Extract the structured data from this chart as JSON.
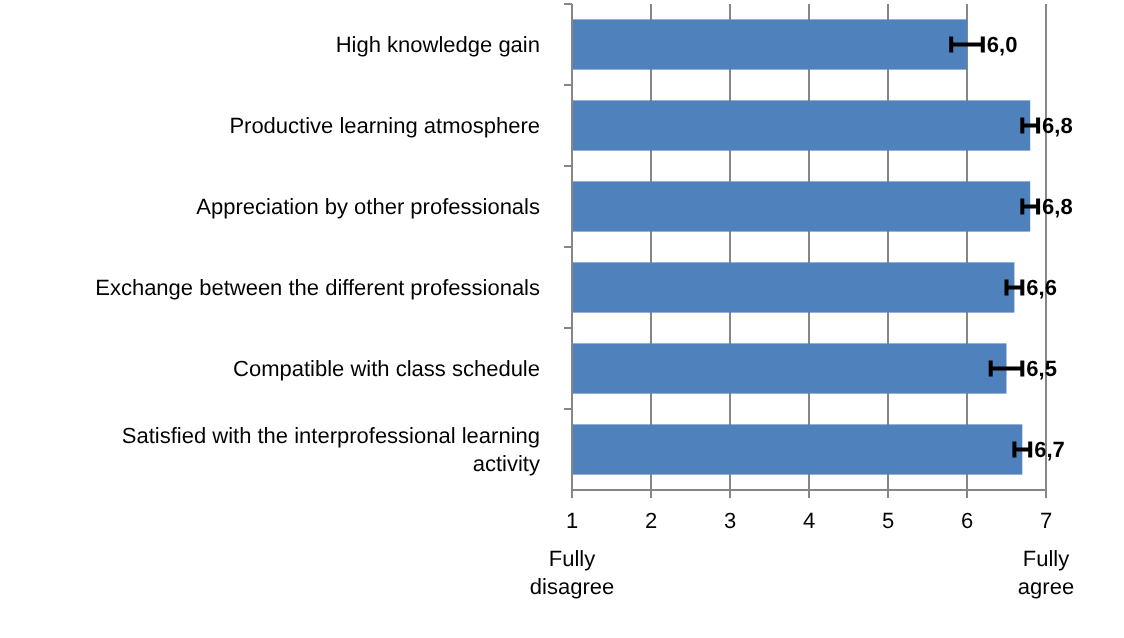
{
  "chart_data": {
    "type": "bar",
    "orientation": "horizontal",
    "categories": [
      "High knowledge gain",
      "Productive learning atmosphere",
      "Appreciation by other professionals",
      "Exchange between the different professionals",
      "Compatible with class schedule",
      "Satisfied with the interprofessional learning activity"
    ],
    "values": [
      6.0,
      6.8,
      6.8,
      6.6,
      6.5,
      6.7
    ],
    "errors": [
      0.2,
      0.1,
      0.1,
      0.1,
      0.2,
      0.1
    ],
    "value_labels": [
      "6,0",
      "6,8",
      "6,8",
      "6,6",
      "6,5",
      "6,7"
    ],
    "color": "#4f81bd",
    "xlim": [
      1,
      7
    ],
    "xticks": [
      1,
      2,
      3,
      4,
      5,
      6,
      7
    ],
    "grid": "x",
    "annotations": [
      "Fully disagree",
      "Fully agree"
    ]
  }
}
